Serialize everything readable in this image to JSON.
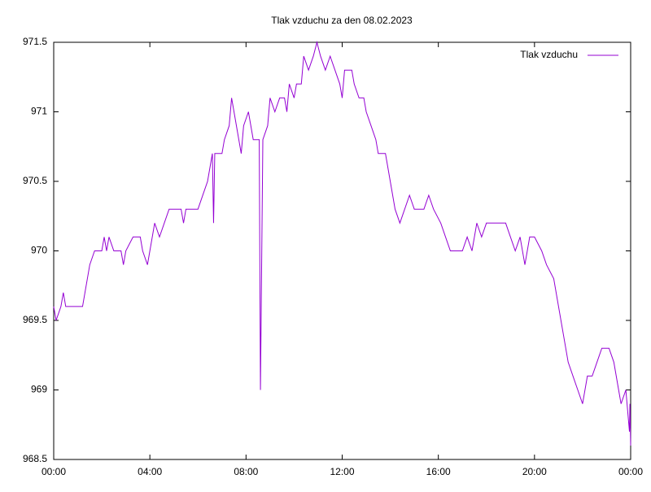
{
  "chart_data": {
    "type": "line",
    "title": "Tlak vzduchu za den 08.02.2023",
    "x": [
      0,
      0.1,
      0.3,
      0.4,
      0.5,
      1.0,
      1.2,
      1.3,
      1.5,
      1.7,
      2.0,
      2.1,
      2.2,
      2.3,
      2.5,
      2.8,
      2.9,
      3.0,
      3.3,
      3.6,
      3.7,
      3.9,
      4.0,
      4.2,
      4.4,
      4.6,
      4.8,
      5.3,
      5.4,
      5.5,
      6.0,
      6.2,
      6.4,
      6.6,
      6.65,
      6.7,
      7.0,
      7.1,
      7.3,
      7.4,
      7.5,
      7.8,
      7.9,
      8.1,
      8.3,
      8.55,
      8.6,
      8.65,
      8.7,
      8.9,
      9.0,
      9.2,
      9.4,
      9.6,
      9.7,
      9.8,
      10.0,
      10.1,
      10.3,
      10.4,
      10.6,
      10.8,
      10.95,
      11.1,
      11.3,
      11.5,
      11.7,
      11.9,
      12.0,
      12.1,
      12.4,
      12.5,
      12.7,
      12.9,
      13.0,
      13.2,
      13.4,
      13.5,
      13.8,
      14.0,
      14.2,
      14.4,
      14.6,
      14.8,
      15.0,
      15.4,
      15.6,
      15.8,
      16.1,
      16.3,
      16.5,
      16.8,
      17.0,
      17.2,
      17.4,
      17.6,
      17.8,
      18.0,
      18.4,
      18.8,
      19.0,
      19.2,
      19.4,
      19.6,
      19.8,
      20.0,
      20.3,
      20.5,
      20.8,
      21.0,
      21.2,
      21.4,
      21.6,
      21.8,
      22.0,
      22.2,
      22.4,
      22.6,
      22.8,
      23.1,
      23.3,
      23.5,
      23.6,
      23.8,
      23.9,
      23.95,
      23.97,
      24.0
    ],
    "series": [
      {
        "name": "Tlak vzduchu",
        "color": "#9400d3",
        "values": [
          969.6,
          969.5,
          969.6,
          969.7,
          969.6,
          969.6,
          969.6,
          969.7,
          969.9,
          970.0,
          970.0,
          970.1,
          970.0,
          970.1,
          970.0,
          970.0,
          969.9,
          970.0,
          970.1,
          970.1,
          970.0,
          969.9,
          970.0,
          970.2,
          970.1,
          970.2,
          970.3,
          970.3,
          970.2,
          970.3,
          970.3,
          970.4,
          970.5,
          970.7,
          970.2,
          970.7,
          970.7,
          970.8,
          970.9,
          971.1,
          971.0,
          970.7,
          970.9,
          971.0,
          970.8,
          970.8,
          969.0,
          969.9,
          970.8,
          970.9,
          971.1,
          971.0,
          971.1,
          971.1,
          971.0,
          971.2,
          971.1,
          971.2,
          971.2,
          971.4,
          971.3,
          971.4,
          971.5,
          971.4,
          971.3,
          971.4,
          971.3,
          971.2,
          971.1,
          971.3,
          971.3,
          971.2,
          971.1,
          971.1,
          971.0,
          970.9,
          970.8,
          970.7,
          970.7,
          970.5,
          970.3,
          970.2,
          970.3,
          970.4,
          970.3,
          970.3,
          970.4,
          970.3,
          970.2,
          970.1,
          970.0,
          970.0,
          970.0,
          970.1,
          970.0,
          970.2,
          970.1,
          970.2,
          970.2,
          970.2,
          970.1,
          970.0,
          970.1,
          969.9,
          970.1,
          970.1,
          970.0,
          969.9,
          969.8,
          969.6,
          969.4,
          969.2,
          969.1,
          969.0,
          968.9,
          969.1,
          969.1,
          969.2,
          969.3,
          969.3,
          969.2,
          969.0,
          968.9,
          969.0,
          968.8,
          968.7,
          968.9,
          968.6
        ]
      }
    ],
    "xlim": [
      0,
      24
    ],
    "xticks": [
      {
        "value": 0,
        "label": "00:00"
      },
      {
        "value": 4,
        "label": "04:00"
      },
      {
        "value": 8,
        "label": "08:00"
      },
      {
        "value": 12,
        "label": "12:00"
      },
      {
        "value": 16,
        "label": "16:00"
      },
      {
        "value": 20,
        "label": "20:00"
      },
      {
        "value": 24,
        "label": "00:00"
      }
    ],
    "ylim": [
      968.5,
      971.5
    ],
    "yticks": [
      968.5,
      969,
      969.5,
      970,
      970.5,
      971,
      971.5
    ],
    "grid": false,
    "legend": "top-right"
  }
}
